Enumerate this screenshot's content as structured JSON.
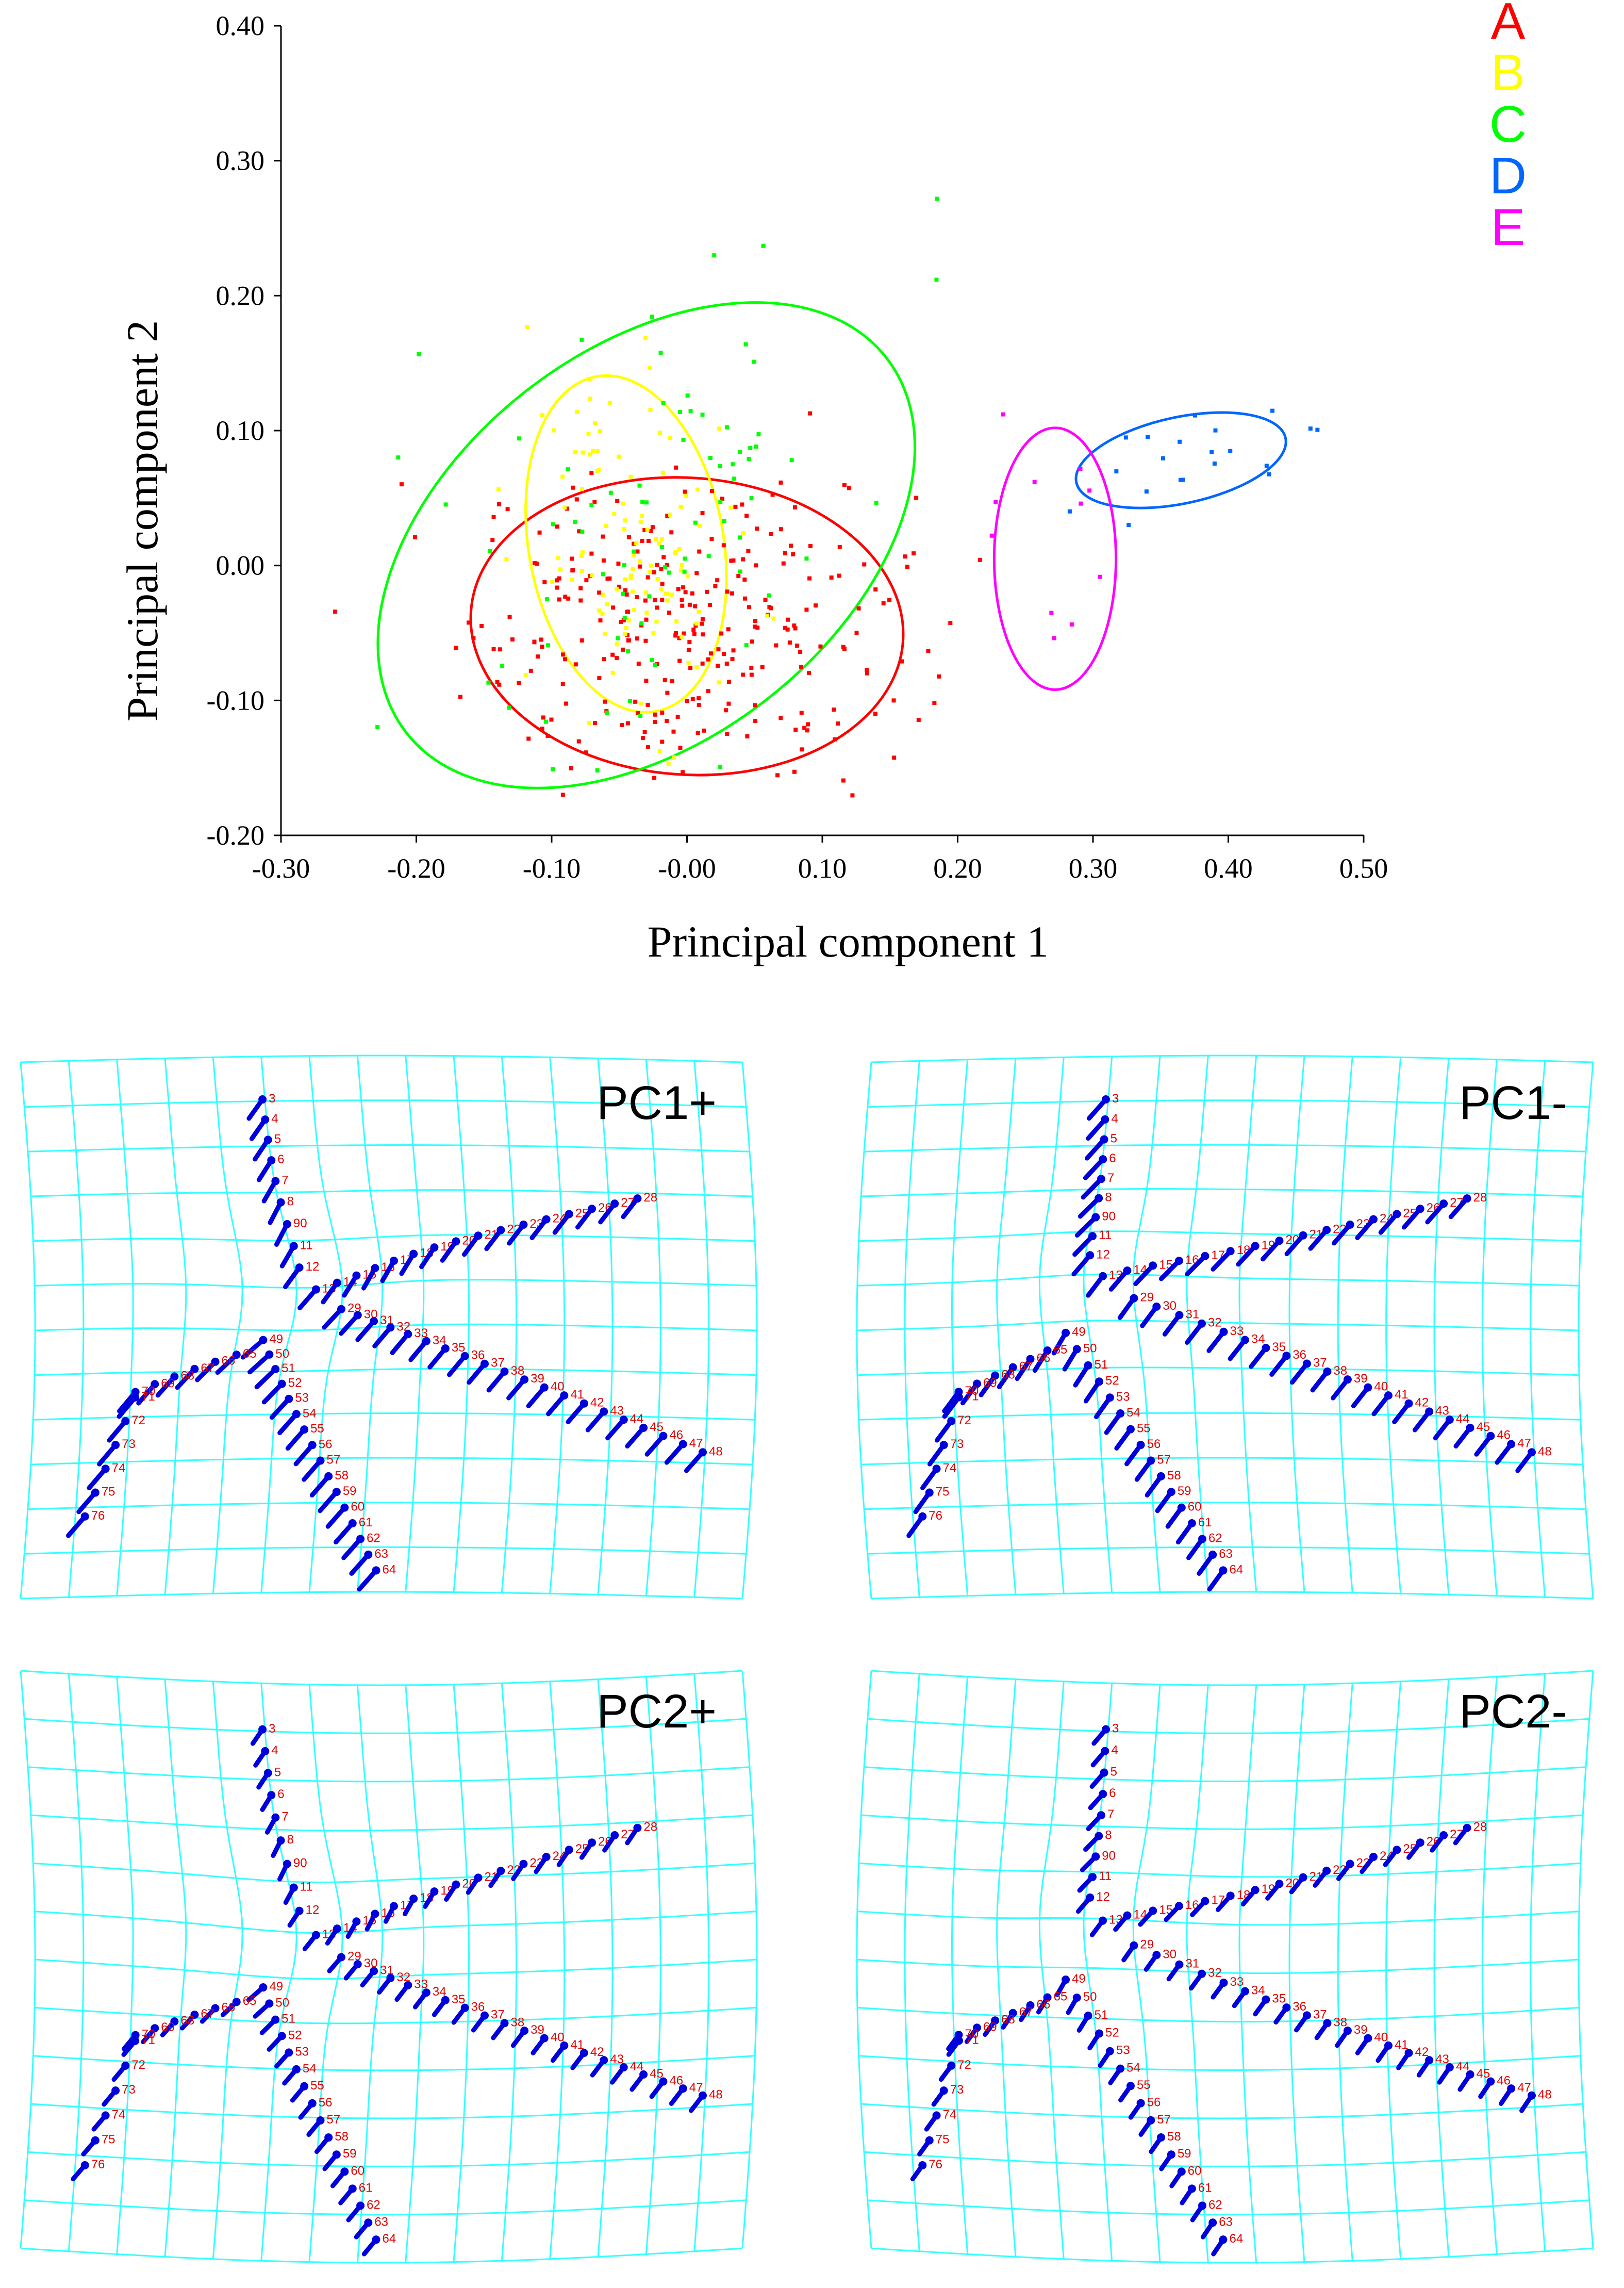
{
  "chart_data": [
    {
      "type": "scatter",
      "title": "",
      "xlabel": "Principal component 1",
      "ylabel": "Principal component 2",
      "xlim": [
        -0.3,
        0.5
      ],
      "ylim": [
        -0.2,
        0.4
      ],
      "xticks": [
        "-0.30",
        "-0.20",
        "-0.10",
        "-0.00",
        "0.10",
        "0.20",
        "0.30",
        "0.40",
        "0.50"
      ],
      "xtick_values": [
        -0.3,
        -0.2,
        -0.1,
        0.0,
        0.1,
        0.2,
        0.3,
        0.4,
        0.5
      ],
      "yticks": [
        "0.40",
        "0.30",
        "0.20",
        "0.10",
        "0.00",
        "-0.10",
        "-0.20"
      ],
      "ytick_values": [
        0.4,
        0.3,
        0.2,
        0.1,
        0.0,
        -0.1,
        -0.2
      ],
      "legend_position": "top-right",
      "series": [
        {
          "name": "A",
          "color": "#ff0000",
          "ellipse": {
            "cx": 0.0,
            "cy": -0.045,
            "rx": 0.16,
            "ry": 0.11,
            "angle_deg": 4
          },
          "sample_count": 300
        },
        {
          "name": "B",
          "color": "#ffff00",
          "ellipse": {
            "cx": -0.045,
            "cy": 0.016,
            "rx": 0.072,
            "ry": 0.126,
            "angle_deg": -10
          },
          "sample_count": 110
        },
        {
          "name": "C",
          "color": "#00ff00",
          "ellipse": {
            "cx": -0.03,
            "cy": 0.015,
            "rx": 0.225,
            "ry": 0.145,
            "angle_deg": -38
          },
          "sample_count": 80
        },
        {
          "name": "D",
          "color": "#0066ff",
          "ellipse": {
            "cx": 0.365,
            "cy": 0.078,
            "rx": 0.079,
            "ry": 0.032,
            "angle_deg": -12
          },
          "sample_count": 20
        },
        {
          "name": "E",
          "color": "#ff00ff",
          "ellipse": {
            "cx": 0.272,
            "cy": 0.005,
            "rx": 0.045,
            "ry": 0.097,
            "angle_deg": 0
          },
          "sample_count": 11
        }
      ]
    },
    {
      "type": "deformation-grid",
      "panels": [
        {
          "name": "PC1+"
        },
        {
          "name": "PC1-"
        },
        {
          "name": "PC2+"
        },
        {
          "name": "PC2-"
        }
      ],
      "landmark_labels": [
        "3",
        "4",
        "5",
        "6",
        "7",
        "8",
        "90",
        "11",
        "12",
        "13",
        "14",
        "15",
        "16",
        "17",
        "18",
        "19",
        "20",
        "21",
        "22",
        "23",
        "24",
        "25",
        "26",
        "27",
        "28",
        "29",
        "30",
        "31",
        "32",
        "33",
        "34",
        "35",
        "36",
        "37",
        "38",
        "39",
        "40",
        "41",
        "42",
        "43",
        "44",
        "45",
        "46",
        "47",
        "48",
        "49",
        "50",
        "51",
        "52",
        "53",
        "54",
        "55",
        "56",
        "57",
        "58",
        "59",
        "60",
        "61",
        "62",
        "63",
        "64",
        "65",
        "66",
        "67",
        "68",
        "69",
        "70",
        "71",
        "72",
        "73",
        "74",
        "75",
        "76"
      ],
      "grid_color": "#33ffff",
      "landmark_color": "#0000dd",
      "label_color": "#e00000"
    }
  ]
}
